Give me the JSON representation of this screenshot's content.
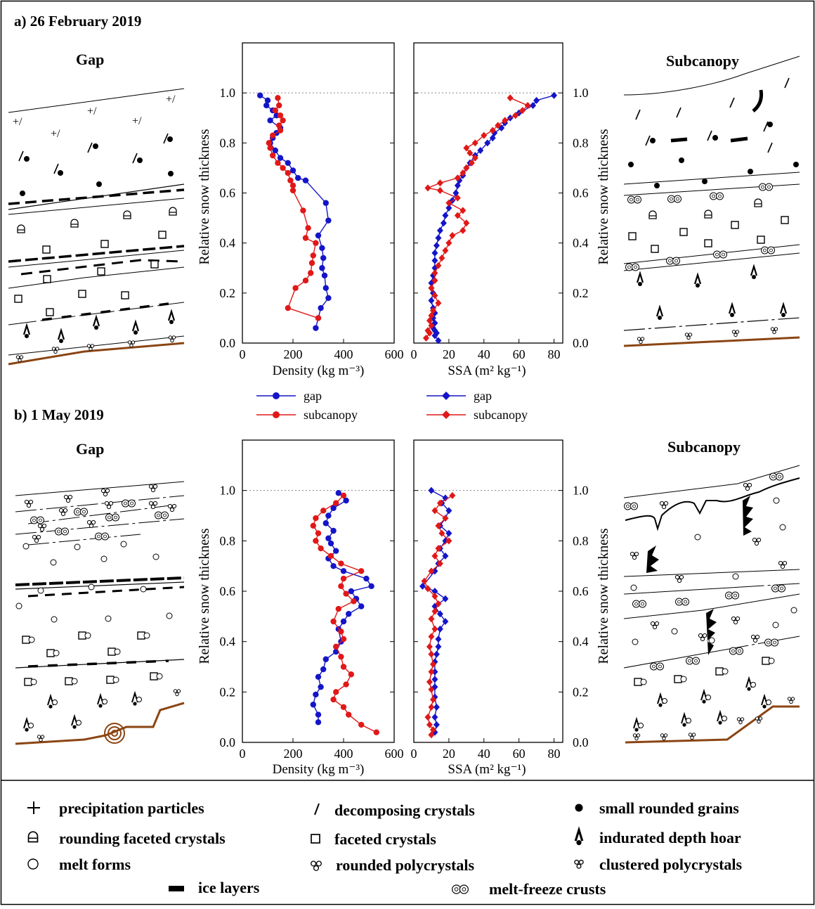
{
  "panels": {
    "a": {
      "label": "a) 26 February 2019",
      "left_title": "Gap",
      "right_title": "Subcanopy"
    },
    "b": {
      "label": "b) 1 May 2019",
      "left_title": "Gap",
      "right_title": "Subcanopy"
    }
  },
  "axes": {
    "ylabel": "Relative snow thickness",
    "density_xlabel": "Density (kg m⁻³)",
    "ssa_xlabel": "SSA (m² kg⁻¹)",
    "yticks": [
      "0.0",
      "0.2",
      "0.4",
      "0.6",
      "0.8",
      "1.0"
    ],
    "density_ticks": [
      "0",
      "200",
      "400",
      "600"
    ],
    "ssa_ticks": [
      "0",
      "20",
      "40",
      "60",
      "80"
    ]
  },
  "legend": {
    "density": [
      {
        "label": "gap",
        "color": "#1414c8"
      },
      {
        "label": "subcanopy",
        "color": "#e01818"
      }
    ],
    "ssa": [
      {
        "label": "gap",
        "color": "#1414c8"
      },
      {
        "label": "subcanopy",
        "color": "#e01818"
      }
    ]
  },
  "symbol_legend": [
    {
      "icon": "plus-icon",
      "label": "precipitation particles"
    },
    {
      "icon": "slash-icon",
      "label": "decomposing crystals"
    },
    {
      "icon": "dot-icon",
      "label": "small rounded grains"
    },
    {
      "icon": "rounding-faceted-icon",
      "label": "rounding faceted crystals"
    },
    {
      "icon": "square-icon",
      "label": "faceted crystals"
    },
    {
      "icon": "depth-hoar-icon",
      "label": "indurated depth hoar"
    },
    {
      "icon": "circle-icon",
      "label": "melt forms"
    },
    {
      "icon": "rounded-poly-icon",
      "label": "rounded polycrystals"
    },
    {
      "icon": "clustered-poly-icon",
      "label": "clustered polycrystals"
    },
    {
      "icon": "ice-layer-icon",
      "label": "ice layers"
    },
    {
      "icon": "melt-freeze-icon",
      "label": "melt-freeze crusts"
    }
  ],
  "chart_data": [
    {
      "panel": "a",
      "type": "line",
      "xlabel": "Density (kg m⁻³)",
      "ylabel": "Relative snow thickness",
      "xlim": [
        0,
        600
      ],
      "ylim": [
        0,
        1.2
      ],
      "series": [
        {
          "name": "gap",
          "color": "#1414c8",
          "x": [
            70,
            100,
            95,
            120,
            135,
            110,
            150,
            135,
            120,
            110,
            130,
            150,
            180,
            200,
            220,
            250,
            330,
            340,
            300,
            315,
            320,
            315,
            325,
            330,
            340,
            310,
            300,
            290
          ],
          "y": [
            0.99,
            0.97,
            0.95,
            0.93,
            0.91,
            0.89,
            0.86,
            0.84,
            0.82,
            0.8,
            0.77,
            0.74,
            0.72,
            0.69,
            0.66,
            0.65,
            0.56,
            0.49,
            0.43,
            0.38,
            0.34,
            0.3,
            0.27,
            0.22,
            0.18,
            0.14,
            0.1,
            0.06
          ]
        },
        {
          "name": "subcanopy",
          "color": "#e01818",
          "x": [
            140,
            145,
            130,
            150,
            160,
            145,
            150,
            120,
            105,
            110,
            120,
            140,
            160,
            180,
            190,
            200,
            200,
            240,
            260,
            250,
            290,
            280,
            275,
            270,
            250,
            210,
            180,
            300
          ],
          "y": [
            0.98,
            0.95,
            0.93,
            0.91,
            0.89,
            0.87,
            0.85,
            0.83,
            0.8,
            0.78,
            0.75,
            0.72,
            0.7,
            0.68,
            0.65,
            0.63,
            0.61,
            0.53,
            0.46,
            0.42,
            0.4,
            0.35,
            0.32,
            0.28,
            0.25,
            0.22,
            0.14,
            0.1
          ]
        }
      ]
    },
    {
      "panel": "a",
      "type": "line",
      "xlabel": "SSA (m² kg⁻¹)",
      "ylabel": "Relative snow thickness",
      "xlim": [
        0,
        85
      ],
      "ylim": [
        0,
        1.2
      ],
      "series": [
        {
          "name": "gap",
          "color": "#1414c8",
          "x": [
            80,
            70,
            68,
            60,
            55,
            52,
            50,
            46,
            45,
            42,
            38,
            35,
            32,
            30,
            28,
            26,
            25,
            24,
            22,
            20,
            18,
            17,
            15,
            14,
            13,
            12,
            12,
            12,
            11,
            10,
            10,
            11,
            10,
            11,
            12,
            11,
            12,
            11,
            12,
            13,
            12,
            14
          ],
          "y": [
            0.99,
            0.97,
            0.95,
            0.92,
            0.9,
            0.88,
            0.86,
            0.84,
            0.82,
            0.8,
            0.77,
            0.75,
            0.72,
            0.7,
            0.67,
            0.65,
            0.63,
            0.6,
            0.57,
            0.54,
            0.51,
            0.48,
            0.45,
            0.42,
            0.39,
            0.36,
            0.33,
            0.3,
            0.27,
            0.24,
            0.22,
            0.2,
            0.17,
            0.14,
            0.12,
            0.1,
            0.08,
            0.06,
            0.05,
            0.04,
            0.03,
            0.01
          ]
        },
        {
          "name": "subcanopy",
          "color": "#e01818",
          "x": [
            55,
            65,
            62,
            58,
            52,
            48,
            45,
            40,
            35,
            30,
            32,
            35,
            33,
            30,
            28,
            25,
            15,
            8,
            15,
            25,
            20,
            28,
            25,
            30,
            28,
            22,
            20,
            18,
            16,
            14,
            12,
            12,
            10,
            12,
            14,
            11,
            10,
            9,
            10,
            8,
            9,
            7
          ],
          "y": [
            0.98,
            0.95,
            0.93,
            0.91,
            0.89,
            0.87,
            0.85,
            0.83,
            0.8,
            0.78,
            0.76,
            0.74,
            0.72,
            0.7,
            0.68,
            0.66,
            0.64,
            0.62,
            0.61,
            0.58,
            0.56,
            0.53,
            0.51,
            0.48,
            0.45,
            0.43,
            0.4,
            0.37,
            0.34,
            0.31,
            0.28,
            0.25,
            0.22,
            0.19,
            0.16,
            0.13,
            0.11,
            0.09,
            0.07,
            0.05,
            0.04,
            0.02
          ]
        }
      ]
    },
    {
      "panel": "b",
      "type": "line",
      "xlabel": "Density (kg m⁻³)",
      "ylabel": "Relative snow thickness",
      "xlim": [
        0,
        600
      ],
      "ylim": [
        0,
        1.2
      ],
      "series": [
        {
          "name": "gap",
          "color": "#1414c8",
          "x": [
            380,
            410,
            360,
            340,
            330,
            360,
            340,
            350,
            370,
            340,
            360,
            400,
            490,
            510,
            430,
            450,
            470,
            420,
            400,
            380,
            390,
            370,
            330,
            320,
            300,
            310,
            290,
            280,
            300,
            300
          ],
          "y": [
            0.99,
            0.96,
            0.93,
            0.9,
            0.87,
            0.84,
            0.81,
            0.79,
            0.76,
            0.73,
            0.7,
            0.68,
            0.65,
            0.62,
            0.6,
            0.57,
            0.54,
            0.51,
            0.48,
            0.45,
            0.4,
            0.36,
            0.33,
            0.29,
            0.26,
            0.22,
            0.19,
            0.15,
            0.11,
            0.08
          ]
        },
        {
          "name": "subcanopy",
          "color": "#e01818",
          "x": [
            400,
            370,
            320,
            290,
            280,
            300,
            290,
            310,
            350,
            390,
            470,
            400,
            390,
            410,
            440,
            380,
            360,
            390,
            400,
            370,
            390,
            400,
            430,
            410,
            370,
            360,
            400,
            420,
            470,
            530
          ],
          "y": [
            0.98,
            0.95,
            0.92,
            0.89,
            0.86,
            0.83,
            0.8,
            0.77,
            0.74,
            0.71,
            0.68,
            0.65,
            0.62,
            0.59,
            0.56,
            0.53,
            0.48,
            0.44,
            0.41,
            0.38,
            0.34,
            0.3,
            0.27,
            0.23,
            0.2,
            0.17,
            0.14,
            0.11,
            0.07,
            0.04
          ]
        }
      ]
    },
    {
      "panel": "b",
      "type": "line",
      "xlabel": "SSA (m² kg⁻¹)",
      "ylabel": "Relative snow thickness",
      "xlim": [
        0,
        85
      ],
      "ylim": [
        0,
        1.2
      ],
      "series": [
        {
          "name": "gap",
          "color": "#1414c8",
          "x": [
            10,
            18,
            16,
            20,
            18,
            15,
            20,
            18,
            15,
            18,
            14,
            12,
            5,
            12,
            18,
            12,
            15,
            18,
            15,
            14,
            14,
            13,
            12,
            12,
            12,
            12,
            12,
            13,
            12,
            13,
            12
          ],
          "y": [
            1.0,
            0.97,
            0.95,
            0.92,
            0.89,
            0.86,
            0.83,
            0.8,
            0.77,
            0.74,
            0.71,
            0.68,
            0.62,
            0.6,
            0.57,
            0.54,
            0.51,
            0.48,
            0.45,
            0.41,
            0.38,
            0.35,
            0.32,
            0.28,
            0.25,
            0.22,
            0.18,
            0.14,
            0.1,
            0.07,
            0.04
          ]
        },
        {
          "name": "subcanopy",
          "color": "#e01818",
          "x": [
            22,
            15,
            12,
            18,
            14,
            16,
            20,
            14,
            12,
            15,
            10,
            6,
            8,
            12,
            14,
            12,
            10,
            12,
            10,
            9,
            10,
            11,
            10,
            9,
            10,
            11,
            10,
            8,
            9,
            11,
            10
          ],
          "y": [
            0.98,
            0.95,
            0.92,
            0.89,
            0.86,
            0.83,
            0.8,
            0.77,
            0.74,
            0.71,
            0.68,
            0.64,
            0.61,
            0.58,
            0.55,
            0.52,
            0.49,
            0.45,
            0.42,
            0.38,
            0.35,
            0.31,
            0.28,
            0.24,
            0.21,
            0.17,
            0.14,
            0.1,
            0.07,
            0.05,
            0.03
          ]
        }
      ]
    }
  ]
}
